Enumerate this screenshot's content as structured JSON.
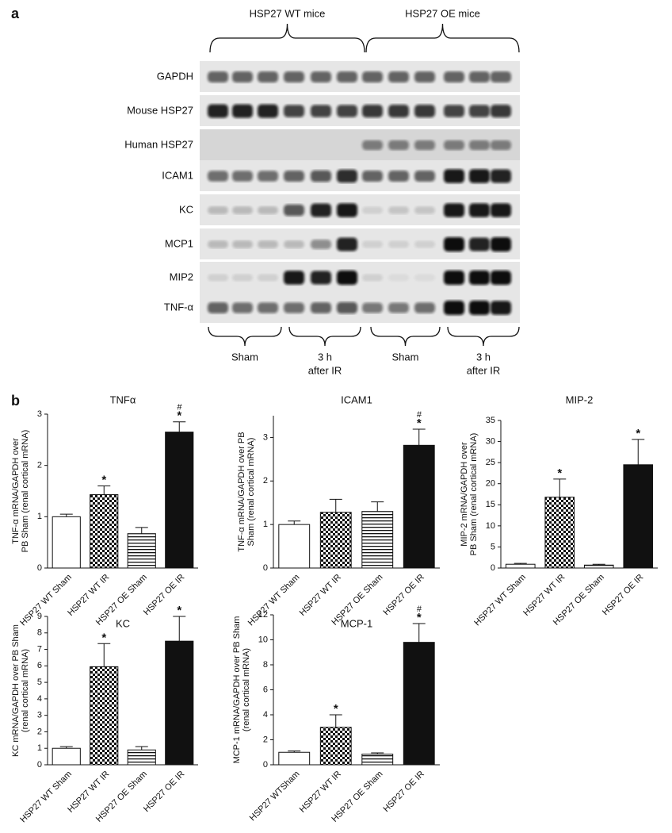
{
  "panel_a": {
    "label": "a",
    "groups": [
      "HSP27 WT mice",
      "HSP27 OE mice"
    ],
    "genes": [
      "GAPDH",
      "Mouse HSP27",
      "Human HSP27",
      "ICAM1",
      "KC",
      "MCP1",
      "MIP2",
      "TNF-α"
    ],
    "conditions": [
      [
        "Sham"
      ],
      [
        "3 h",
        "after IR"
      ],
      [
        "Sham"
      ],
      [
        "3 h",
        "after IR"
      ]
    ]
  },
  "panel_b": {
    "label": "b"
  },
  "chart_data": [
    {
      "type": "bar",
      "title": "TNFα",
      "ylabel": [
        "TNF-α mRNA/GAPDH over",
        "PB Sham (renal cortical mRNA)"
      ],
      "categories": [
        "HSP27 WT Sham",
        "HSP27 WT IR",
        "HSP27 OE Sham",
        "HSP27 OE IR"
      ],
      "values": [
        1.0,
        1.43,
        0.67,
        2.65
      ],
      "errors": [
        0.05,
        0.17,
        0.12,
        0.2
      ],
      "fills": [
        "white",
        "checker",
        "stripes",
        "black"
      ],
      "annotations": [
        null,
        [
          "*"
        ],
        null,
        [
          "*",
          "#"
        ]
      ],
      "ylim": [
        0,
        3
      ],
      "yticks": [
        0,
        1,
        2,
        3
      ]
    },
    {
      "type": "bar",
      "title": "ICAM1",
      "ylabel": [
        "TNF-α mRNA/GAPDH over PB",
        "Sham (renal cortical mRNA)"
      ],
      "categories": [
        "HSP27 WT Sham",
        "HSP27 WT IR",
        "HSP27 OE Sham",
        "HSP27 OE IR"
      ],
      "values": [
        1.0,
        1.28,
        1.3,
        2.82
      ],
      "errors": [
        0.08,
        0.3,
        0.22,
        0.37
      ],
      "fills": [
        "white",
        "checker",
        "stripes",
        "black"
      ],
      "annotations": [
        null,
        null,
        null,
        [
          "*",
          "#"
        ]
      ],
      "ylim": [
        0,
        3.5
      ],
      "yticks": [
        0,
        1,
        2,
        3
      ]
    },
    {
      "type": "bar",
      "title": "MIP-2",
      "ylabel": [
        "MIP-2 mRNA/GAPDH over",
        "PB Sham (renal cortical mRNA)"
      ],
      "categories": [
        "HSP27 WT Sham",
        "HSP27 WT IR",
        "HSP27 OE Sham",
        "HSP27 OE IR"
      ],
      "values": [
        0.9,
        16.8,
        0.7,
        24.5
      ],
      "errors": [
        0.2,
        4.3,
        0.2,
        6.0
      ],
      "fills": [
        "white",
        "checker",
        "stripes",
        "black"
      ],
      "annotations": [
        null,
        [
          "*"
        ],
        null,
        [
          "*"
        ]
      ],
      "ylim": [
        0,
        35
      ],
      "yticks": [
        0,
        5,
        10,
        15,
        20,
        25,
        30,
        35
      ]
    },
    {
      "type": "bar",
      "title": "KC",
      "ylabel": [
        "KC mRNA/GAPDH over PB Sham",
        "(renal cortical mRNA)"
      ],
      "categories": [
        "HSP27 WT Sham",
        "HSP27 WT IR",
        "HSP27 OE Sham",
        "HSP27 OE IR"
      ],
      "values": [
        1.0,
        5.95,
        0.9,
        7.5
      ],
      "errors": [
        0.1,
        1.4,
        0.2,
        1.5
      ],
      "fills": [
        "white",
        "checker",
        "stripes",
        "black"
      ],
      "annotations": [
        null,
        [
          "*"
        ],
        null,
        [
          "*"
        ]
      ],
      "ylim": [
        0,
        9
      ],
      "yticks": [
        0,
        1,
        2,
        3,
        4,
        5,
        6,
        7,
        8,
        9
      ]
    },
    {
      "type": "bar",
      "title": "MCP-1",
      "ylabel": [
        "MCP-1 mRNA/GAPDH over PB Sham",
        "(renal cortical mRNA)"
      ],
      "categories": [
        "HSP27 WTSham",
        "HSP27 WT IR",
        "HSP27 OE Sham",
        "HSP27 OE IR"
      ],
      "values": [
        1.0,
        3.0,
        0.85,
        9.8
      ],
      "errors": [
        0.1,
        1.0,
        0.1,
        1.5
      ],
      "fills": [
        "white",
        "checker",
        "stripes",
        "black"
      ],
      "annotations": [
        null,
        [
          "*"
        ],
        null,
        [
          "*",
          "#"
        ]
      ],
      "ylim": [
        0,
        12
      ],
      "yticks": [
        0,
        2,
        4,
        6,
        8,
        10,
        12
      ]
    }
  ]
}
